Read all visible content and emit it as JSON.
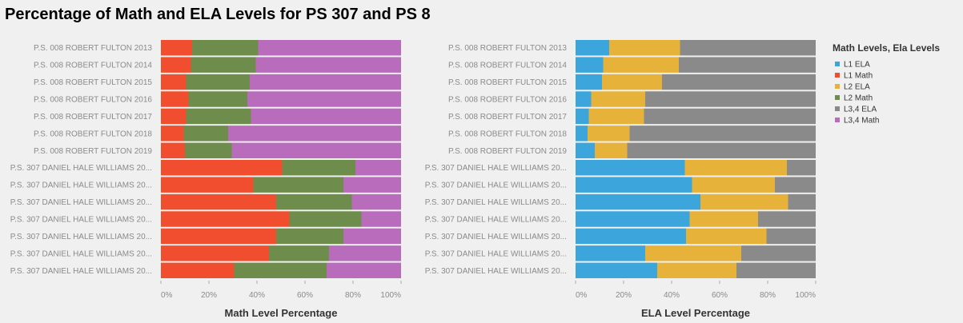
{
  "chart_data": {
    "type": "bar",
    "title": "Percentage of Math and ELA Levels for PS 307 and PS 8",
    "categories": [
      "P.S. 008 ROBERT FULTON 2013",
      "P.S. 008 ROBERT FULTON 2014",
      "P.S. 008 ROBERT FULTON 2015",
      "P.S. 008 ROBERT FULTON 2016",
      "P.S. 008 ROBERT FULTON 2017",
      "P.S. 008 ROBERT FULTON 2018",
      "P.S. 008 ROBERT FULTON 2019",
      "P.S. 307 DANIEL HALE WILLIAMS 20...",
      "P.S. 307 DANIEL HALE WILLIAMS 20...",
      "P.S. 307 DANIEL HALE WILLIAMS 20...",
      "P.S. 307 DANIEL HALE WILLIAMS 20...",
      "P.S. 307 DANIEL HALE WILLIAMS 20...",
      "P.S. 307 DANIEL HALE WILLIAMS 20...",
      "P.S. 307 DANIEL HALE WILLIAMS 20..."
    ],
    "ticks": [
      "0%",
      "20%",
      "40%",
      "60%",
      "80%",
      "100%"
    ],
    "xlim": [
      0,
      100
    ],
    "legend": {
      "title": "Math Levels, Ela Levels",
      "position": "right",
      "items": [
        {
          "label": "L1 ELA",
          "color": "#3ba5dc"
        },
        {
          "label": "L1 Math",
          "color": "#f04e2e"
        },
        {
          "label": "L2 ELA",
          "color": "#e7b23a"
        },
        {
          "label": "L2 Math",
          "color": "#6e8c4c"
        },
        {
          "label": "L3,4 ELA",
          "color": "#8a8a8a"
        },
        {
          "label": "L3,4 Math",
          "color": "#b96cbb"
        }
      ]
    },
    "panels": [
      {
        "xlabel": "Math Level Percentage",
        "series": [
          {
            "name": "L1 Math",
            "color": "#f04e2e",
            "values": [
              13,
              12.5,
              10.5,
              11.5,
              10.5,
              9.5,
              10,
              50.5,
              38.5,
              48,
              53.5,
              48,
              45,
              30.5
            ]
          },
          {
            "name": "L2 Math",
            "color": "#6e8c4c",
            "values": [
              27.5,
              27,
              26.5,
              24.5,
              27,
              18.5,
              19.5,
              30.5,
              37.5,
              31.5,
              30,
              28,
              25,
              38.5
            ]
          },
          {
            "name": "L3,4 Math",
            "color": "#b96cbb",
            "values": [
              59.5,
              60.5,
              63,
              64,
              62.5,
              72,
              70.5,
              19,
              24,
              20.5,
              16.5,
              24,
              30,
              31
            ]
          }
        ]
      },
      {
        "xlabel": "ELA Level Percentage",
        "series": [
          {
            "name": "L1 ELA",
            "color": "#3ba5dc",
            "values": [
              14,
              11.5,
              11,
              6.5,
              5.5,
              5,
              8,
              45.5,
              48.5,
              52,
              47.5,
              46,
              29,
              34
            ]
          },
          {
            "name": "L2 ELA",
            "color": "#e7b23a",
            "values": [
              29.5,
              31.5,
              25,
              22.5,
              23,
              17.5,
              13.5,
              42.5,
              34.5,
              36.5,
              28.5,
              33.5,
              40,
              33
            ]
          },
          {
            "name": "L3,4 ELA",
            "color": "#8a8a8a",
            "values": [
              56.5,
              57,
              64,
              71,
              71.5,
              77.5,
              78.5,
              12,
              17,
              11.5,
              24,
              20.5,
              31,
              33
            ]
          }
        ]
      }
    ]
  }
}
